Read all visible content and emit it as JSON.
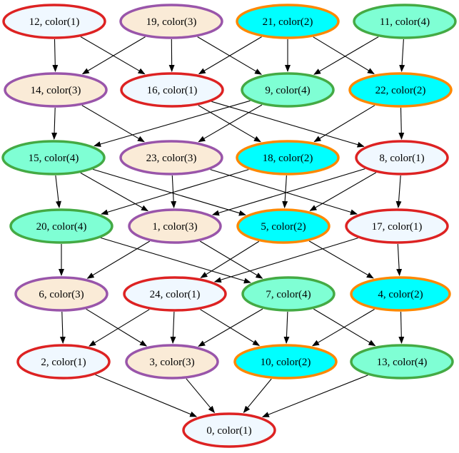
{
  "nodes": [
    {
      "id": "n12",
      "label": "12, color(1)",
      "color_class": 1
    },
    {
      "id": "n19",
      "label": "19, color(3)",
      "color_class": 3
    },
    {
      "id": "n21",
      "label": "21, color(2)",
      "color_class": 2
    },
    {
      "id": "n11",
      "label": "11, color(4)",
      "color_class": 4
    },
    {
      "id": "n14",
      "label": "14, color(3)",
      "color_class": 3
    },
    {
      "id": "n16",
      "label": "16, color(1)",
      "color_class": 1
    },
    {
      "id": "n9",
      "label": "9, color(4)",
      "color_class": 4
    },
    {
      "id": "n22",
      "label": "22, color(2)",
      "color_class": 2
    },
    {
      "id": "n15",
      "label": "15, color(4)",
      "color_class": 4
    },
    {
      "id": "n23",
      "label": "23, color(3)",
      "color_class": 3
    },
    {
      "id": "n18",
      "label": "18, color(2)",
      "color_class": 2
    },
    {
      "id": "n8",
      "label": "8, color(1)",
      "color_class": 1
    },
    {
      "id": "n20",
      "label": "20, color(4)",
      "color_class": 4
    },
    {
      "id": "n1",
      "label": "1, color(3)",
      "color_class": 3
    },
    {
      "id": "n5",
      "label": "5, color(2)",
      "color_class": 2
    },
    {
      "id": "n17",
      "label": "17, color(1)",
      "color_class": 1
    },
    {
      "id": "n6",
      "label": "6, color(3)",
      "color_class": 3
    },
    {
      "id": "n24",
      "label": "24, color(1)",
      "color_class": 1
    },
    {
      "id": "n7",
      "label": "7, color(4)",
      "color_class": 4
    },
    {
      "id": "n4",
      "label": "4, color(2)",
      "color_class": 2
    },
    {
      "id": "n2",
      "label": "2, color(1)",
      "color_class": 1
    },
    {
      "id": "n3",
      "label": "3, color(3)",
      "color_class": 3
    },
    {
      "id": "n10",
      "label": "10, color(2)",
      "color_class": 2
    },
    {
      "id": "n13",
      "label": "13, color(4)",
      "color_class": 4
    },
    {
      "id": "n0",
      "label": "0, color(1)",
      "color_class": 1
    }
  ],
  "edges": [
    [
      "n12",
      "n14"
    ],
    [
      "n12",
      "n16"
    ],
    [
      "n19",
      "n14"
    ],
    [
      "n19",
      "n16"
    ],
    [
      "n19",
      "n9"
    ],
    [
      "n21",
      "n16"
    ],
    [
      "n21",
      "n9"
    ],
    [
      "n21",
      "n22"
    ],
    [
      "n11",
      "n9"
    ],
    [
      "n11",
      "n22"
    ],
    [
      "n14",
      "n15"
    ],
    [
      "n14",
      "n23"
    ],
    [
      "n16",
      "n18"
    ],
    [
      "n16",
      "n8"
    ],
    [
      "n9",
      "n15"
    ],
    [
      "n9",
      "n23"
    ],
    [
      "n22",
      "n18"
    ],
    [
      "n22",
      "n8"
    ],
    [
      "n15",
      "n20"
    ],
    [
      "n15",
      "n1"
    ],
    [
      "n15",
      "n5"
    ],
    [
      "n23",
      "n1"
    ],
    [
      "n23",
      "n17"
    ],
    [
      "n18",
      "n20"
    ],
    [
      "n18",
      "n5"
    ],
    [
      "n8",
      "n1"
    ],
    [
      "n8",
      "n5"
    ],
    [
      "n8",
      "n17"
    ],
    [
      "n20",
      "n6"
    ],
    [
      "n20",
      "n7"
    ],
    [
      "n1",
      "n6"
    ],
    [
      "n1",
      "n7"
    ],
    [
      "n5",
      "n24"
    ],
    [
      "n5",
      "n4"
    ],
    [
      "n17",
      "n24"
    ],
    [
      "n17",
      "n4"
    ],
    [
      "n6",
      "n2"
    ],
    [
      "n6",
      "n3"
    ],
    [
      "n24",
      "n2"
    ],
    [
      "n24",
      "n3"
    ],
    [
      "n24",
      "n10"
    ],
    [
      "n7",
      "n3"
    ],
    [
      "n7",
      "n10"
    ],
    [
      "n7",
      "n13"
    ],
    [
      "n4",
      "n10"
    ],
    [
      "n4",
      "n13"
    ],
    [
      "n2",
      "n0"
    ],
    [
      "n3",
      "n0"
    ],
    [
      "n10",
      "n0"
    ],
    [
      "n13",
      "n0"
    ]
  ],
  "palette": {
    "1": {
      "fill": "#f0f8ff",
      "stroke": "#dd2222"
    },
    "2": {
      "fill": "#00ffff",
      "stroke": "#ff8800"
    },
    "3": {
      "fill": "#faebd7",
      "stroke": "#9955aa"
    },
    "4": {
      "fill": "#7fffd4",
      "stroke": "#44aa44"
    }
  }
}
